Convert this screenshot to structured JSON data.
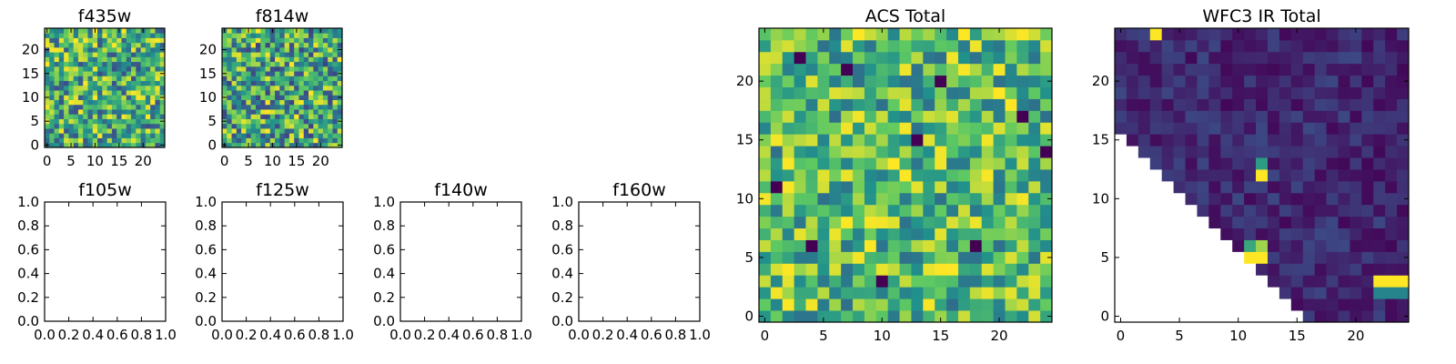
{
  "colormap": {
    "name": "viridis",
    "stops": [
      "#440154",
      "#3b528b",
      "#21918c",
      "#5ec962",
      "#fde725"
    ]
  },
  "chart_data": [
    {
      "id": "f435w",
      "type": "heatmap",
      "title": "f435w",
      "rows": 25,
      "cols": 25,
      "xlim": [
        -0.5,
        24.5
      ],
      "ylim": [
        -0.5,
        24.5
      ],
      "xticks": [
        0,
        5,
        10,
        15,
        20
      ],
      "yticks": [
        0,
        5,
        10,
        15,
        20
      ],
      "xticklabels": [
        "0",
        "5",
        "10",
        "15",
        "20"
      ],
      "yticklabels": [
        "0",
        "5",
        "10",
        "15",
        "20"
      ],
      "value_distribution": "noise",
      "value_mean": 0.62,
      "value_spread": 0.38,
      "seed": 11
    },
    {
      "id": "f814w",
      "type": "heatmap",
      "title": "f814w",
      "rows": 25,
      "cols": 25,
      "xlim": [
        -0.5,
        24.5
      ],
      "ylim": [
        -0.5,
        24.5
      ],
      "xticks": [
        0,
        5,
        10,
        15,
        20
      ],
      "yticks": [
        0,
        5,
        10,
        15,
        20
      ],
      "xticklabels": [
        "0",
        "5",
        "10",
        "15",
        "20"
      ],
      "yticklabels": [
        "0",
        "5",
        "10",
        "15",
        "20"
      ],
      "value_distribution": "noise",
      "value_mean": 0.6,
      "value_spread": 0.4,
      "seed": 23
    },
    {
      "id": "f105w",
      "type": "heatmap",
      "title": "f105w",
      "empty": true,
      "xlim": [
        0,
        1
      ],
      "ylim": [
        0,
        1
      ],
      "xticks": [
        0,
        0.2,
        0.4,
        0.6,
        0.8,
        1.0
      ],
      "yticks": [
        0,
        0.2,
        0.4,
        0.6,
        0.8,
        1.0
      ],
      "xticklabels": [
        "0.0",
        "0.2",
        "0.4",
        "0.6",
        "0.8",
        "1.0"
      ],
      "yticklabels": [
        "0.0",
        "0.2",
        "0.4",
        "0.6",
        "0.8",
        "1.0"
      ]
    },
    {
      "id": "f125w",
      "type": "heatmap",
      "title": "f125w",
      "empty": true,
      "xlim": [
        0,
        1
      ],
      "ylim": [
        0,
        1
      ],
      "xticks": [
        0,
        0.2,
        0.4,
        0.6,
        0.8,
        1.0
      ],
      "yticks": [
        0,
        0.2,
        0.4,
        0.6,
        0.8,
        1.0
      ],
      "xticklabels": [
        "0.0",
        "0.2",
        "0.4",
        "0.6",
        "0.8",
        "1.0"
      ],
      "yticklabels": [
        "0.0",
        "0.2",
        "0.4",
        "0.6",
        "0.8",
        "1.0"
      ]
    },
    {
      "id": "f140w",
      "type": "heatmap",
      "title": "f140w",
      "empty": true,
      "xlim": [
        0,
        1
      ],
      "ylim": [
        0,
        1
      ],
      "xticks": [
        0,
        0.2,
        0.4,
        0.6,
        0.8,
        1.0
      ],
      "yticks": [
        0,
        0.2,
        0.4,
        0.6,
        0.8,
        1.0
      ],
      "xticklabels": [
        "0.0",
        "0.2",
        "0.4",
        "0.6",
        "0.8",
        "1.0"
      ],
      "yticklabels": [
        "0.0",
        "0.2",
        "0.4",
        "0.6",
        "0.8",
        "1.0"
      ]
    },
    {
      "id": "f160w",
      "type": "heatmap",
      "title": "f160w",
      "empty": true,
      "xlim": [
        0,
        1
      ],
      "ylim": [
        0,
        1
      ],
      "xticks": [
        0,
        0.2,
        0.4,
        0.6,
        0.8,
        1.0
      ],
      "yticks": [
        0,
        0.2,
        0.4,
        0.6,
        0.8,
        1.0
      ],
      "xticklabels": [
        "0.0",
        "0.2",
        "0.4",
        "0.6",
        "0.8",
        "1.0"
      ],
      "yticklabels": [
        "0.0",
        "0.2",
        "0.4",
        "0.6",
        "0.8",
        "1.0"
      ]
    },
    {
      "id": "acs_total",
      "type": "heatmap",
      "title": "ACS Total",
      "rows": 25,
      "cols": 25,
      "xlim": [
        -0.5,
        24.5
      ],
      "ylim": [
        -0.5,
        24.5
      ],
      "xticks": [
        0,
        5,
        10,
        15,
        20
      ],
      "yticks": [
        0,
        5,
        10,
        15,
        20
      ],
      "xticklabels": [
        "0",
        "5",
        "10",
        "15",
        "20"
      ],
      "yticklabels": [
        "0",
        "5",
        "10",
        "15",
        "20"
      ],
      "value_distribution": "noise",
      "value_mean": 0.68,
      "value_spread": 0.32,
      "seed": 37,
      "outliers": [
        {
          "x": 3,
          "y": 22,
          "value": 0.0
        },
        {
          "x": 7,
          "y": 21,
          "value": 0.0
        },
        {
          "x": 15,
          "y": 20,
          "value": 0.0
        },
        {
          "x": 18,
          "y": 6,
          "value": 0.0
        },
        {
          "x": 4,
          "y": 6,
          "value": 0.0
        },
        {
          "x": 22,
          "y": 17,
          "value": 0.0
        },
        {
          "x": 10,
          "y": 3,
          "value": 0.0
        },
        {
          "x": 1,
          "y": 11,
          "value": 0.0
        },
        {
          "x": 13,
          "y": 15,
          "value": 0.0
        },
        {
          "x": 24,
          "y": 14,
          "value": 0.0
        },
        {
          "x": 11,
          "y": 13,
          "value": 1.0
        },
        {
          "x": 12,
          "y": 12,
          "value": 1.0
        },
        {
          "x": 20,
          "y": 19,
          "value": 1.0
        },
        {
          "x": 21,
          "y": 18,
          "value": 1.0
        },
        {
          "x": 7,
          "y": 8,
          "value": 1.0
        },
        {
          "x": 16,
          "y": 4,
          "value": 1.0
        },
        {
          "x": 2,
          "y": 4,
          "value": 1.0
        },
        {
          "x": 8,
          "y": 24,
          "value": 1.0
        }
      ]
    },
    {
      "id": "wfc3_ir_total",
      "type": "heatmap",
      "title": "WFC3 IR Total",
      "rows": 25,
      "cols": 25,
      "xlim": [
        -0.5,
        24.5
      ],
      "ylim": [
        -0.5,
        24.5
      ],
      "xticks": [
        0,
        5,
        10,
        15,
        20
      ],
      "yticks": [
        0,
        5,
        10,
        15,
        20
      ],
      "xticklabels": [
        "0",
        "5",
        "10",
        "15",
        "20"
      ],
      "yticklabels": [
        "0",
        "5",
        "10",
        "15",
        "20"
      ],
      "value_distribution": "noise",
      "value_mean": 0.12,
      "value_spread": 0.1,
      "seed": 53,
      "masked_region": "lower-left triangle (no data)",
      "outliers": [
        {
          "x": 3,
          "y": 24,
          "value": 1.0
        },
        {
          "x": 12,
          "y": 13,
          "value": 0.55
        },
        {
          "x": 12,
          "y": 12,
          "value": 1.0
        },
        {
          "x": 11,
          "y": 6,
          "value": 0.6
        },
        {
          "x": 12,
          "y": 6,
          "value": 0.85
        },
        {
          "x": 11,
          "y": 5,
          "value": 1.0
        },
        {
          "x": 12,
          "y": 5,
          "value": 1.0
        },
        {
          "x": 22,
          "y": 3,
          "value": 1.0
        },
        {
          "x": 23,
          "y": 3,
          "value": 1.0
        },
        {
          "x": 24,
          "y": 3,
          "value": 1.0
        },
        {
          "x": 22,
          "y": 2,
          "value": 0.45
        },
        {
          "x": 23,
          "y": 2,
          "value": 0.45
        },
        {
          "x": 24,
          "y": 2,
          "value": 0.45
        }
      ]
    }
  ]
}
